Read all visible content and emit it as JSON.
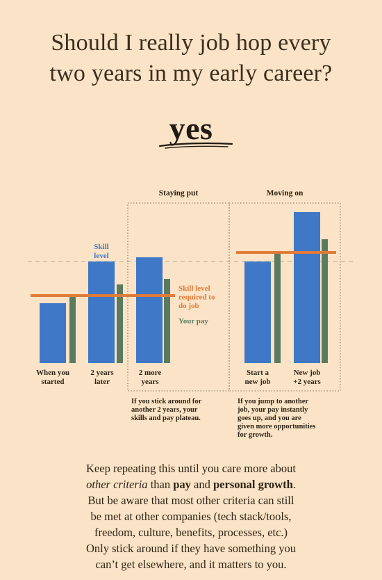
{
  "title_line1": "Should I really job hop every",
  "title_line2": "two years in my early career?",
  "answer": "yes",
  "colors": {
    "background": "#fae3c6",
    "skill": "#3f78c6",
    "pay": "#5b7b60",
    "required_line": "#e07b39",
    "dashed": "#a8a090"
  },
  "chart_data": {
    "type": "bar",
    "groups": [
      "Staying put",
      "Moving on"
    ],
    "categories": [
      "When you started",
      "2 years later",
      "2 more years",
      "Start a new job",
      "New job +2 years"
    ],
    "category_labels": [
      [
        "When you",
        "started"
      ],
      [
        "2 years",
        "later"
      ],
      [
        "2 more",
        "years"
      ],
      [
        "Start a",
        "new job"
      ],
      [
        "New job",
        "+2 years"
      ]
    ],
    "series": [
      {
        "name": "Skill level",
        "label_lines": [
          "Skill",
          "level"
        ],
        "values": [
          86,
          146,
          152,
          146,
          217
        ],
        "color": "#3f78c6"
      },
      {
        "name": "Your pay",
        "values": [
          97,
          113,
          121,
          159,
          178
        ],
        "color": "#5b7b60"
      }
    ],
    "required_line": {
      "name": "Skill level required to do job",
      "label_lines": [
        "Skill level",
        "required to",
        "do job"
      ],
      "segments": [
        {
          "from_category": 0,
          "to_category": 2,
          "value": 97
        },
        {
          "from_category": 3,
          "to_category": 4,
          "value": 159
        }
      ]
    },
    "reference_value": 146,
    "notes": [
      [
        "If you stick around for",
        "another 2 years, your",
        "skills and pay plateau."
      ],
      [
        "If you jump to another",
        "job, your pay instantly",
        "goes up, and you are",
        "given more opportunities",
        "for growth."
      ]
    ],
    "ylim": [
      0,
      230
    ]
  },
  "bottom": {
    "l1": "Keep repeating this until you care more about",
    "l2_italic": "other criteria",
    "l2_mid": " than ",
    "l2_bold1": "pay",
    "l2_and": " and ",
    "l2_bold2": "personal growth",
    "l2_end": ".",
    "l3": "But be aware that most other criteria can still",
    "l4": "be met at other companies (tech stack/tools,",
    "l5": "freedom, culture, benefits, processes, etc.)",
    "l6": "Only stick around if they have something you",
    "l7": "can’t get elsewhere, and it matters to you."
  }
}
